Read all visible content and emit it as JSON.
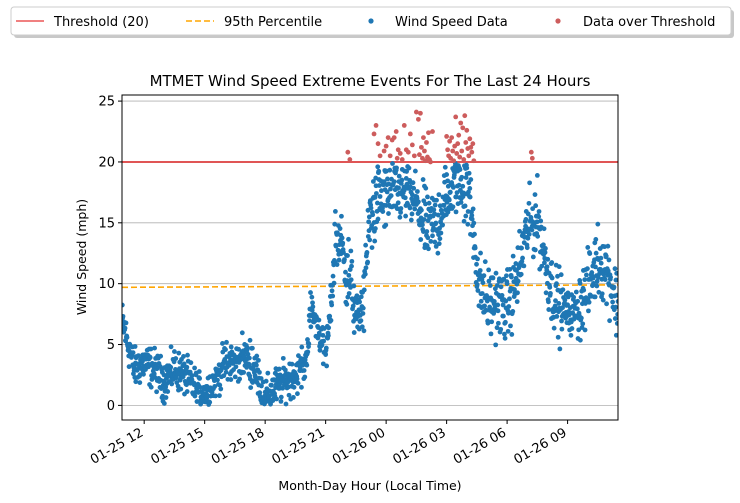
{
  "chart_data": {
    "type": "scatter",
    "title": "MTMET Wind Speed Extreme Events For The Last 24 Hours",
    "xlabel": "Month-Day Hour (Local Time)",
    "ylabel": "Wind Speed (mph)",
    "x_range_hours": [
      10.9,
      35.5
    ],
    "ylim": [
      -1.2,
      25.5
    ],
    "yticks": [
      0,
      5,
      10,
      15,
      20,
      25
    ],
    "xticks": [
      {
        "hour": 12,
        "label": "01-25 12"
      },
      {
        "hour": 15,
        "label": "01-25 15"
      },
      {
        "hour": 18,
        "label": "01-25 18"
      },
      {
        "hour": 21,
        "label": "01-25 21"
      },
      {
        "hour": 24,
        "label": "01-26 00"
      },
      {
        "hour": 27,
        "label": "01-26 03"
      },
      {
        "hour": 30,
        "label": "01-26 06"
      },
      {
        "hour": 33,
        "label": "01-26 09"
      }
    ],
    "grid": "horizontal",
    "legend_placement": "top, above plot",
    "threshold": {
      "name": "Threshold (20)",
      "value": 20,
      "color": "#f08080"
    },
    "percentile95": {
      "name": "95th Percentile",
      "start": 9.7,
      "end": 9.9,
      "color": "#ffa500"
    },
    "series": [
      {
        "name": "Wind Speed Data",
        "color": "#1f77b4",
        "trend": [
          [
            10.9,
            7.0
          ],
          [
            11.5,
            3.0
          ],
          [
            12.0,
            3.5
          ],
          [
            12.5,
            3.0
          ],
          [
            13.0,
            2.0
          ],
          [
            13.5,
            3.0
          ],
          [
            14.0,
            2.5
          ],
          [
            14.5,
            1.5
          ],
          [
            15.0,
            1.0
          ],
          [
            15.5,
            2.0
          ],
          [
            16.0,
            3.5
          ],
          [
            16.5,
            3.5
          ],
          [
            17.0,
            4.0
          ],
          [
            17.5,
            3.0
          ],
          [
            18.0,
            0.5
          ],
          [
            18.5,
            1.5
          ],
          [
            19.0,
            2.0
          ],
          [
            19.5,
            2.5
          ],
          [
            20.0,
            3.5
          ],
          [
            20.3,
            8.0
          ],
          [
            20.7,
            6.0
          ],
          [
            21.0,
            4.0
          ],
          [
            21.2,
            7.0
          ],
          [
            21.5,
            14.0
          ],
          [
            21.8,
            13.0
          ],
          [
            22.0,
            11.5
          ],
          [
            22.3,
            9.5
          ],
          [
            22.6,
            7.0
          ],
          [
            22.9,
            9.0
          ],
          [
            23.2,
            15.5
          ],
          [
            23.6,
            17.0
          ],
          [
            24.0,
            17.0
          ],
          [
            24.5,
            17.5
          ],
          [
            25.0,
            17.5
          ],
          [
            25.5,
            16.5
          ],
          [
            26.0,
            14.5
          ],
          [
            26.5,
            15.0
          ],
          [
            27.0,
            17.0
          ],
          [
            27.5,
            18.5
          ],
          [
            28.0,
            18.0
          ],
          [
            28.3,
            15.0
          ],
          [
            28.6,
            10.0
          ],
          [
            29.0,
            8.5
          ],
          [
            29.5,
            8.5
          ],
          [
            30.0,
            8.0
          ],
          [
            30.5,
            10.5
          ],
          [
            31.0,
            14.5
          ],
          [
            31.5,
            15.5
          ],
          [
            32.0,
            11.0
          ],
          [
            32.3,
            9.0
          ],
          [
            32.7,
            8.0
          ],
          [
            33.2,
            7.5
          ],
          [
            33.5,
            8.0
          ],
          [
            34.0,
            9.5
          ],
          [
            34.5,
            12.0
          ],
          [
            35.0,
            11.0
          ],
          [
            35.5,
            8.0
          ]
        ]
      },
      {
        "name": "Data over Threshold",
        "color": "#cd5c5c",
        "points": [
          [
            22.1,
            20.8
          ],
          [
            22.2,
            20.2
          ],
          [
            23.4,
            22.3
          ],
          [
            23.5,
            23.0
          ],
          [
            23.6,
            21.5
          ],
          [
            23.7,
            20.5
          ],
          [
            23.9,
            20.9
          ],
          [
            24.0,
            21.3
          ],
          [
            24.1,
            22.0
          ],
          [
            24.2,
            20.5
          ],
          [
            24.3,
            21.8
          ],
          [
            24.4,
            22.0
          ],
          [
            24.5,
            22.5
          ],
          [
            24.55,
            20.3
          ],
          [
            24.6,
            21.0
          ],
          [
            24.7,
            20.7
          ],
          [
            24.8,
            20.2
          ],
          [
            24.9,
            23.0
          ],
          [
            25.0,
            21.0
          ],
          [
            25.1,
            20.8
          ],
          [
            25.2,
            22.3
          ],
          [
            25.3,
            21.4
          ],
          [
            25.4,
            20.5
          ],
          [
            25.5,
            24.1
          ],
          [
            25.6,
            23.5
          ],
          [
            25.65,
            20.6
          ],
          [
            25.7,
            24.0
          ],
          [
            25.75,
            21.2
          ],
          [
            25.8,
            20.3
          ],
          [
            25.85,
            22.0
          ],
          [
            25.9,
            20.9
          ],
          [
            25.95,
            20.1
          ],
          [
            26.0,
            21.6
          ],
          [
            26.05,
            20.4
          ],
          [
            26.1,
            22.4
          ],
          [
            26.15,
            20.2
          ],
          [
            26.2,
            20.0
          ],
          [
            26.3,
            22.5
          ],
          [
            27.0,
            22.1
          ],
          [
            27.05,
            21.0
          ],
          [
            27.1,
            20.5
          ],
          [
            27.15,
            21.7
          ],
          [
            27.2,
            20.3
          ],
          [
            27.25,
            22.0
          ],
          [
            27.3,
            20.9
          ],
          [
            27.35,
            20.1
          ],
          [
            27.4,
            21.3
          ],
          [
            27.45,
            23.7
          ],
          [
            27.5,
            20.7
          ],
          [
            27.55,
            21.5
          ],
          [
            27.6,
            22.2
          ],
          [
            27.65,
            20.4
          ],
          [
            27.7,
            23.2
          ],
          [
            27.75,
            20.9
          ],
          [
            27.8,
            22.8
          ],
          [
            27.85,
            20.2
          ],
          [
            27.9,
            23.8
          ],
          [
            27.95,
            21.6
          ],
          [
            28.0,
            22.6
          ],
          [
            28.05,
            21.1
          ],
          [
            28.1,
            20.5
          ],
          [
            28.15,
            21.9
          ],
          [
            28.2,
            21.2
          ],
          [
            28.25,
            20.8
          ],
          [
            28.3,
            21.5
          ],
          [
            28.35,
            20.1
          ],
          [
            31.2,
            20.8
          ],
          [
            31.25,
            20.3
          ]
        ]
      }
    ]
  }
}
